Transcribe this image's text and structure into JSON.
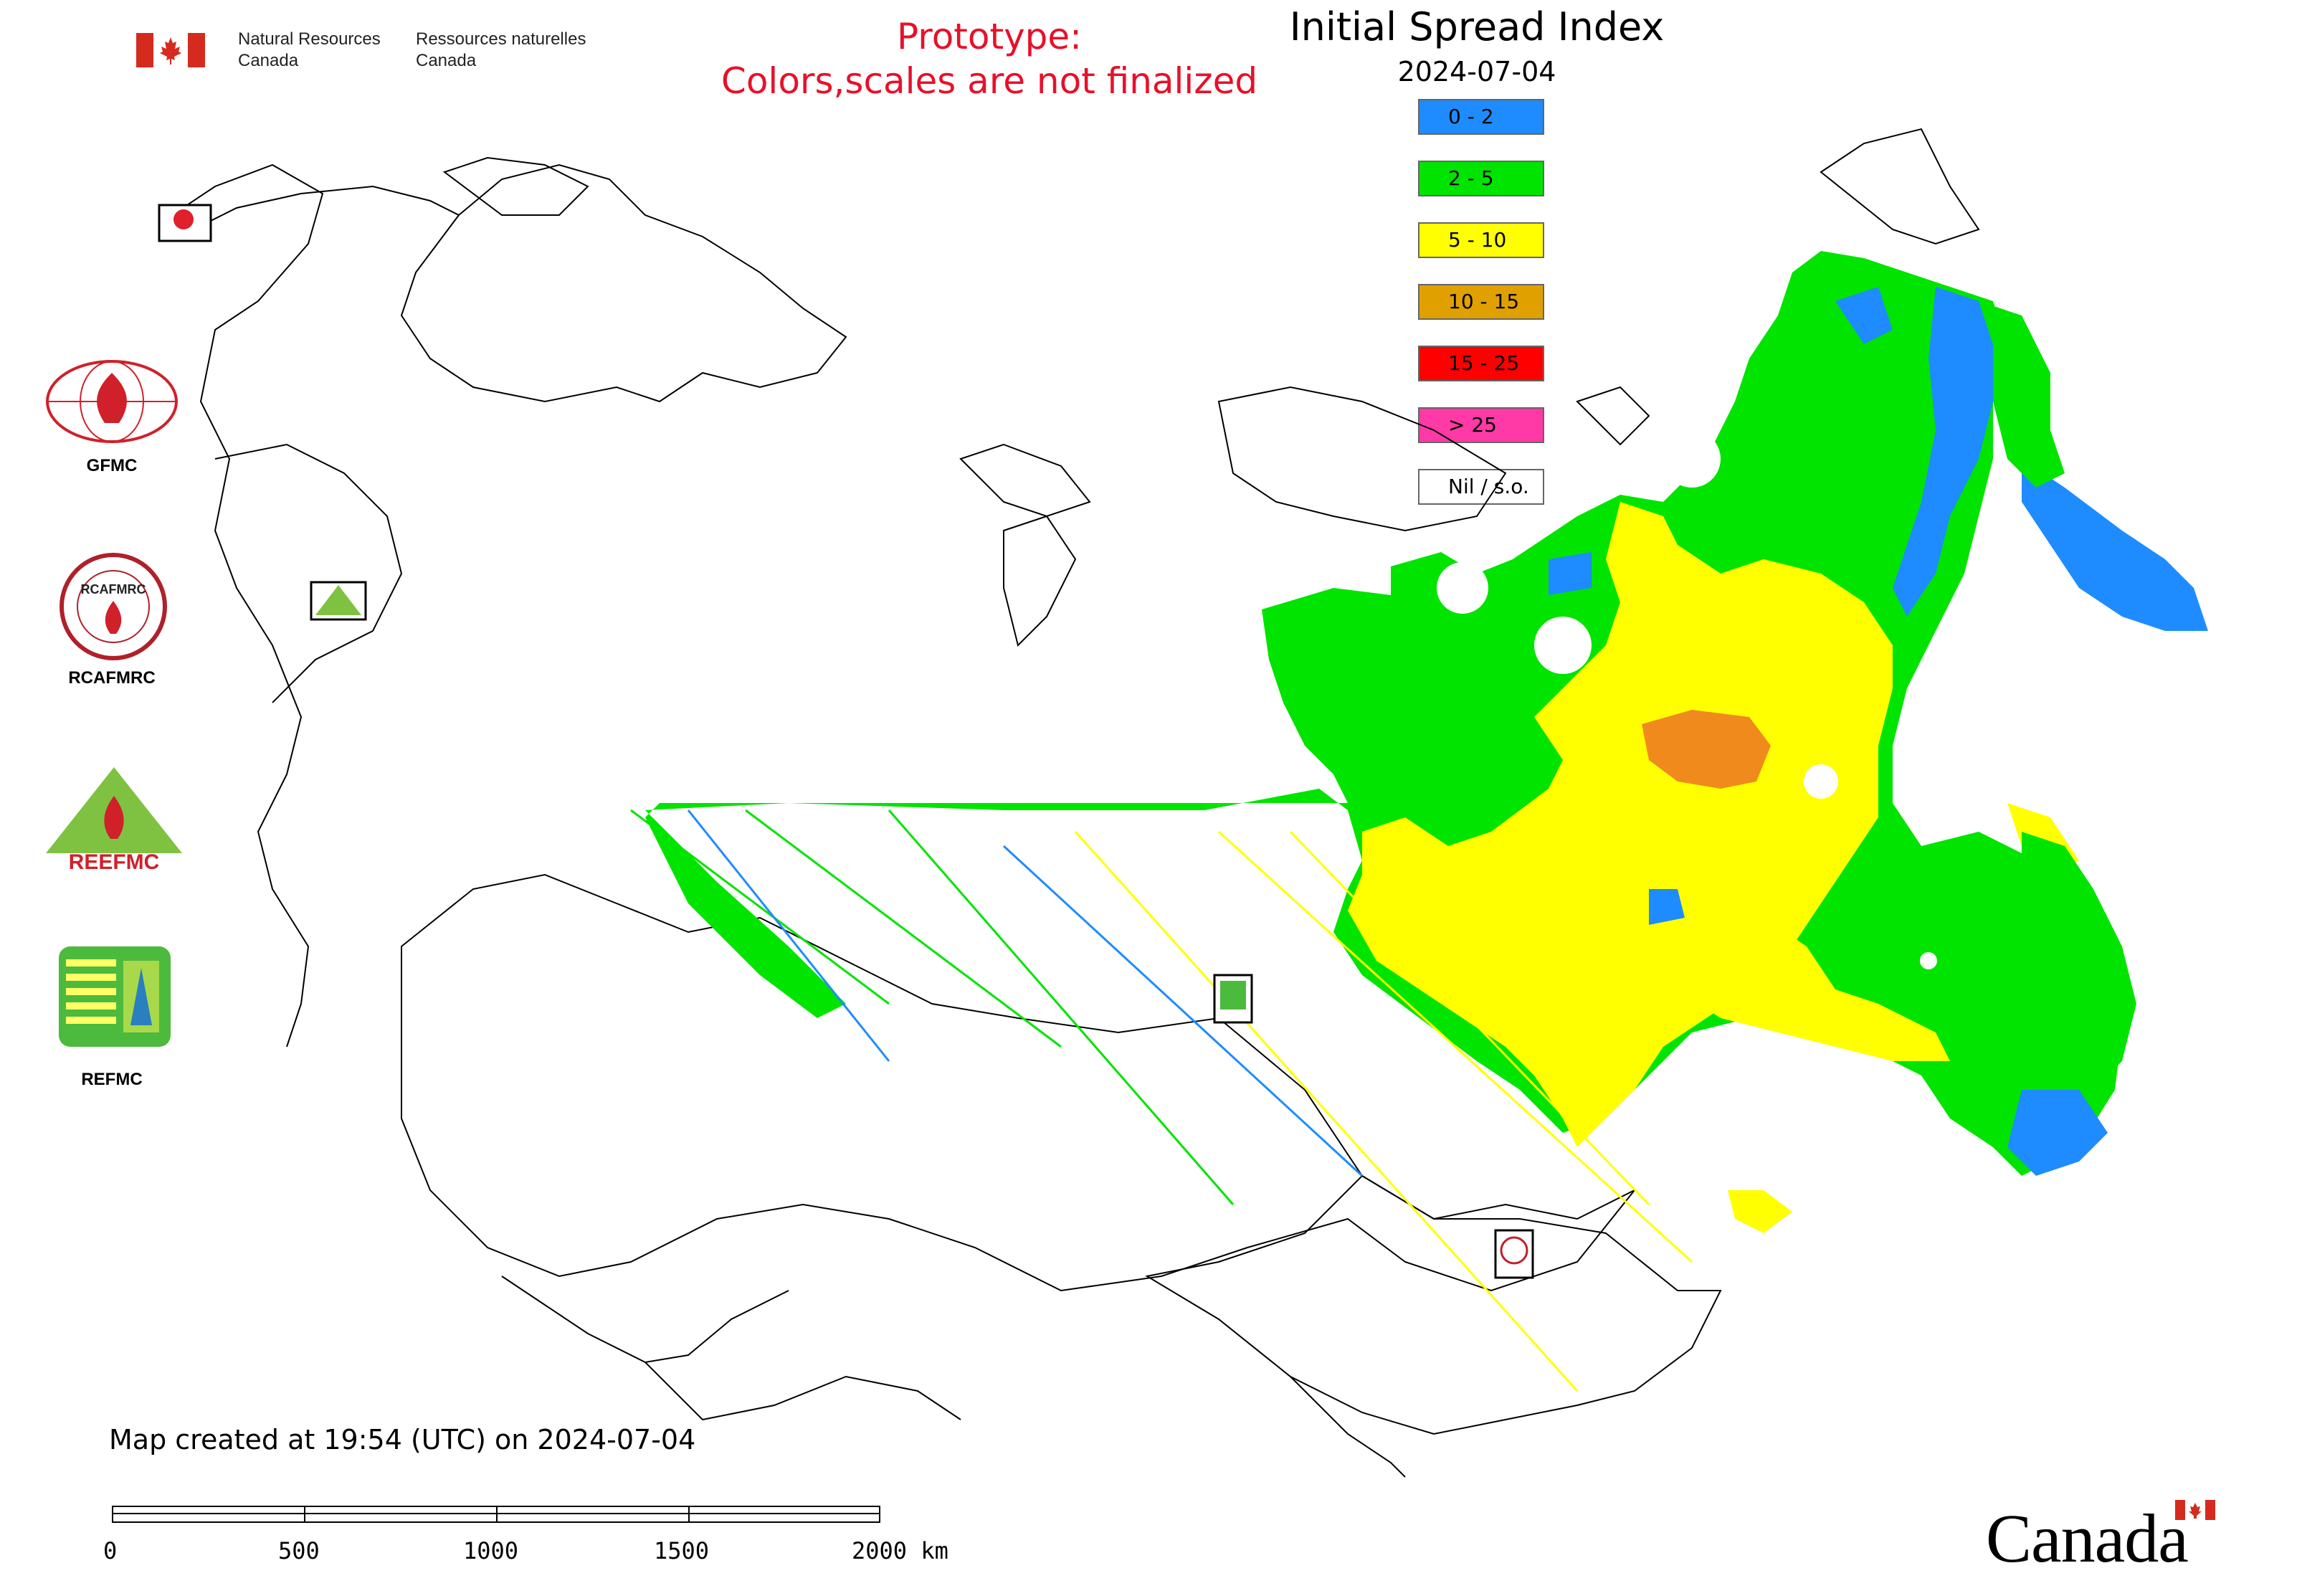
{
  "header": {
    "nrcan_en": [
      "Natural Resources",
      "Canada"
    ],
    "nrcan_fr": [
      "Ressources naturelles",
      "Canada"
    ],
    "prototype_line1": "Prototype:",
    "prototype_line2": "Colors,scales are not finalized"
  },
  "map": {
    "title": "Initial Spread Index",
    "date": "2024-07-04",
    "legend": [
      {
        "label": "0 - 2",
        "color": "#1e8cff"
      },
      {
        "label": "2 - 5",
        "color": "#00e400"
      },
      {
        "label": "5 - 10",
        "color": "#ffff00"
      },
      {
        "label": "10 - 15",
        "color": "#e0a000"
      },
      {
        "label": "15 - 25",
        "color": "#ff0000"
      },
      {
        "label": "> 25",
        "color": "#ff3aa6"
      },
      {
        "label": "Nil / s.o.",
        "color": "#ffffff"
      }
    ]
  },
  "organizations": [
    {
      "label": "GFMC"
    },
    {
      "label": "RCAFMRC"
    },
    {
      "label": "REEFMC"
    },
    {
      "label": "REFMC"
    }
  ],
  "logo_text": {
    "gfmc": "GFMC",
    "rcafmrc": "RCAFMRC",
    "reefmc": "REEFMC",
    "refmc": "REFMC"
  },
  "footer": {
    "created": "Map created at 19:54 (UTC) on 2024-07-04",
    "scale_labels": [
      "0",
      "500",
      "1000",
      "1500",
      "2000 km"
    ],
    "wordmark": "Canada"
  }
}
